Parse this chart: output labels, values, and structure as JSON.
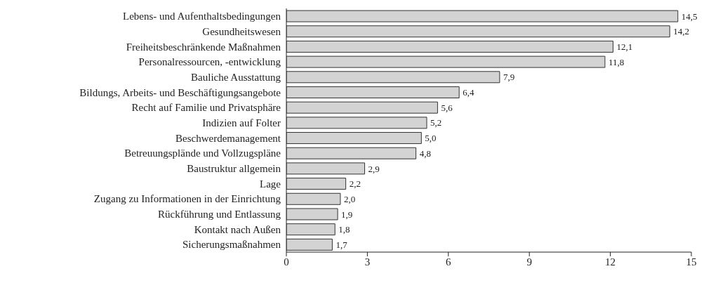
{
  "chart_data": {
    "type": "bar",
    "orientation": "horizontal",
    "categories": [
      "Lebens- und Aufenthaltsbedingungen",
      "Gesundheitswesen",
      "Freiheitsbeschränkende Maßnahmen",
      "Personalressourcen, -entwicklung",
      "Bauliche Ausstattung",
      "Bildungs, Arbeits- und Beschäftigungsangebote",
      "Recht auf Familie und Privatsphäre",
      "Indizien auf Folter",
      "Beschwerdemanagement",
      "Betreuungsplände und Vollzugspläne",
      "Baustruktur allgemein",
      "Lage",
      "Zugang zu Informationen in der Einrichtung",
      "Rückführung und Entlassung",
      "Kontakt nach Außen",
      "Sicherungsmaßnahmen"
    ],
    "values": [
      14.5,
      14.2,
      12.1,
      11.8,
      7.9,
      6.4,
      5.6,
      5.2,
      5.0,
      4.8,
      2.9,
      2.2,
      2.0,
      1.9,
      1.8,
      1.7
    ],
    "value_labels": [
      "14,5",
      "14,2",
      "12,1",
      "11,8",
      "7,9",
      "6,4",
      "5,6",
      "5,2",
      "5,0",
      "4,8",
      "2,9",
      "2,2",
      "2,0",
      "1,9",
      "1,8",
      "1,7"
    ],
    "color": "#d3d3d3",
    "xlim": [
      0,
      15
    ],
    "xticks": [
      0,
      3,
      6,
      9,
      12,
      15
    ],
    "grid": false,
    "legend": false
  }
}
